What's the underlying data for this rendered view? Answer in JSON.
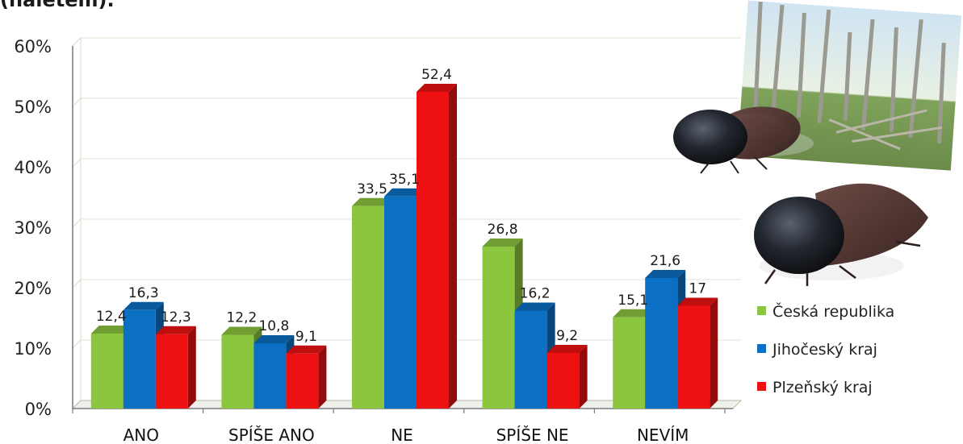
{
  "header": {
    "title_fragment": "(nalétem)."
  },
  "chart_data": {
    "type": "bar",
    "categories": [
      "ANO",
      "SPÍŠE ANO",
      "NE",
      "SPÍŠE NE",
      "NEVÍM"
    ],
    "series": [
      {
        "name": "Česká republika",
        "color": "#8cc63f",
        "values": [
          12.4,
          12.2,
          33.5,
          26.8,
          15.1
        ],
        "labels": [
          "12,4",
          "12,2",
          "33,5",
          "26,8",
          "15,1"
        ]
      },
      {
        "name": "Jihočeský kraj",
        "color": "#0b6fc4",
        "values": [
          16.3,
          10.8,
          35.1,
          16.2,
          21.6
        ],
        "labels": [
          "16,3",
          "10,8",
          "35,1",
          "16,2",
          "21,6"
        ]
      },
      {
        "name": "Plzeňský kraj",
        "color": "#ee1111",
        "values": [
          12.3,
          9.1,
          52.4,
          9.2,
          17
        ],
        "labels": [
          "12,3",
          "9,1",
          "52,4",
          "9,2",
          "17"
        ]
      }
    ],
    "y_ticks": [
      "0%",
      "10%",
      "20%",
      "30%",
      "40%",
      "50%",
      "60%"
    ],
    "ylim": [
      0,
      60
    ],
    "grid": true,
    "legend_position": "bottom-right"
  },
  "illustration": {
    "description_icon": "bark-beetle-forest-photo"
  }
}
